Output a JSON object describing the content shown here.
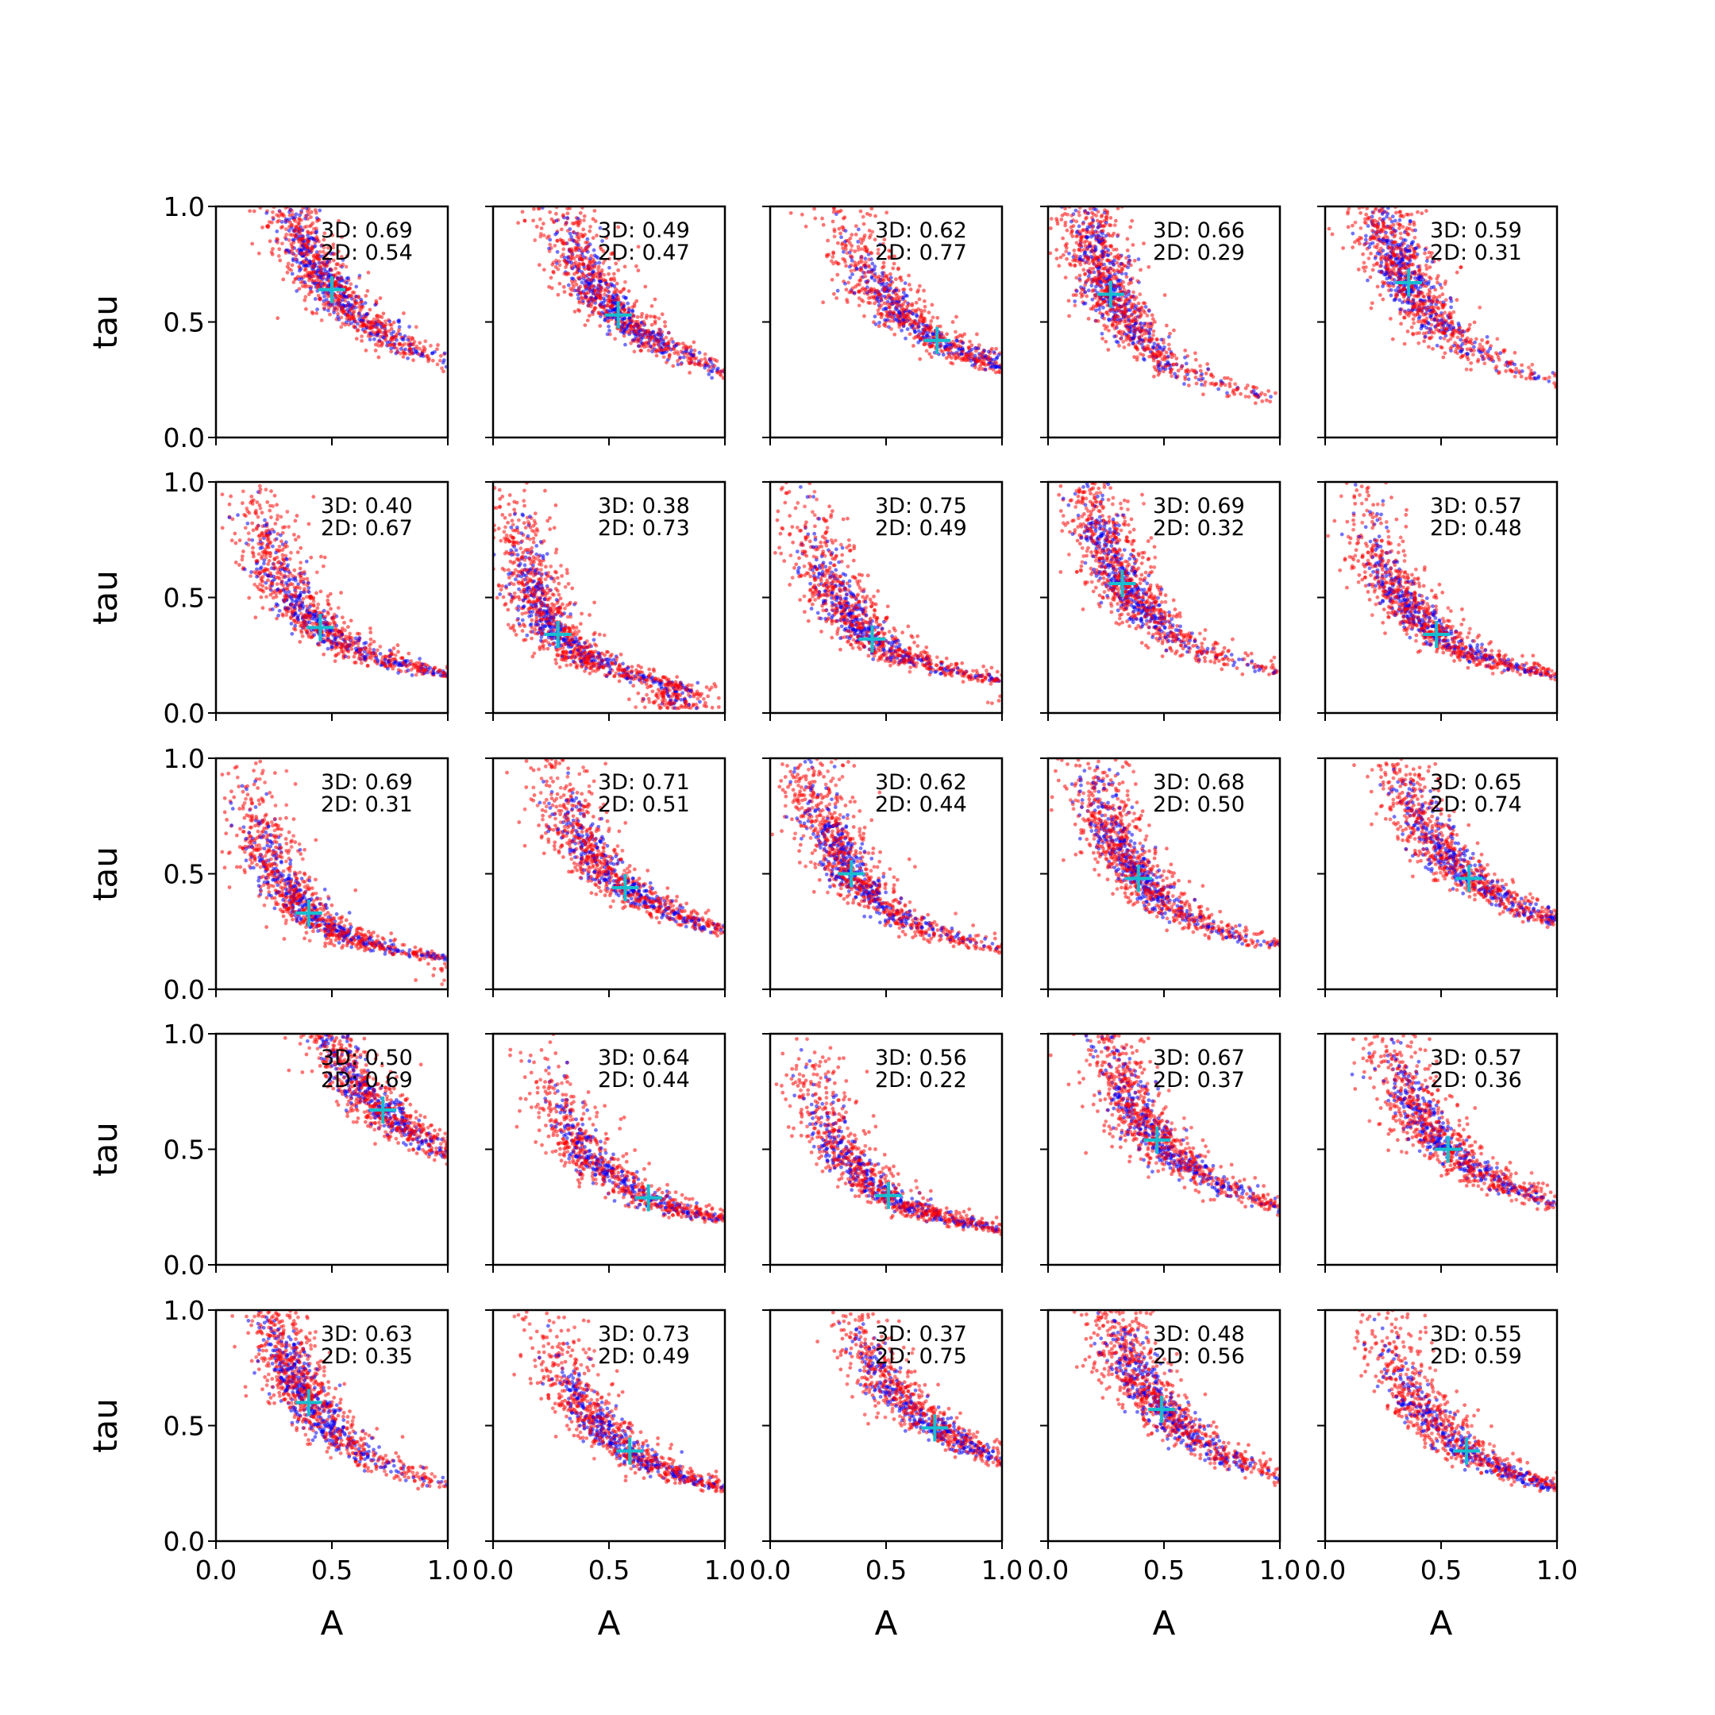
{
  "chart_data": {
    "type": "scatter",
    "layout": "5x5 grid of scatter subplots",
    "xlabel": "A",
    "ylabel": "tau",
    "xlim": [
      0.0,
      1.0
    ],
    "ylim": [
      0.0,
      1.0
    ],
    "xticks": [
      "0.0",
      "0.5",
      "1.0"
    ],
    "yticks": [
      "0.0",
      "0.5",
      "1.0"
    ],
    "grid": false,
    "colors": {
      "series_a": "#ff0000",
      "series_b": "#0000ff",
      "marker": "#17becf"
    },
    "panels": [
      {
        "row": 0,
        "col": 0,
        "label3d": "3D: 0.69",
        "label2d": "2D: 0.54",
        "marker": [
          0.5,
          0.64
        ]
      },
      {
        "row": 0,
        "col": 1,
        "label3d": "3D: 0.49",
        "label2d": "2D: 0.47",
        "marker": [
          0.54,
          0.53
        ]
      },
      {
        "row": 0,
        "col": 2,
        "label3d": "3D: 0.62",
        "label2d": "2D: 0.77",
        "marker": [
          0.72,
          0.42
        ]
      },
      {
        "row": 0,
        "col": 3,
        "label3d": "3D: 0.66",
        "label2d": "2D: 0.29",
        "marker": [
          0.27,
          0.62
        ]
      },
      {
        "row": 0,
        "col": 4,
        "label3d": "3D: 0.59",
        "label2d": "2D: 0.31",
        "marker": [
          0.36,
          0.67
        ]
      },
      {
        "row": 1,
        "col": 0,
        "label3d": "3D: 0.40",
        "label2d": "2D: 0.67",
        "marker": [
          0.45,
          0.37
        ]
      },
      {
        "row": 1,
        "col": 1,
        "label3d": "3D: 0.38",
        "label2d": "2D: 0.73",
        "marker": [
          0.28,
          0.34
        ]
      },
      {
        "row": 1,
        "col": 2,
        "label3d": "3D: 0.75",
        "label2d": "2D: 0.49",
        "marker": [
          0.44,
          0.32
        ]
      },
      {
        "row": 1,
        "col": 3,
        "label3d": "3D: 0.69",
        "label2d": "2D: 0.32",
        "marker": [
          0.32,
          0.56
        ]
      },
      {
        "row": 1,
        "col": 4,
        "label3d": "3D: 0.57",
        "label2d": "2D: 0.48",
        "marker": [
          0.48,
          0.34
        ]
      },
      {
        "row": 2,
        "col": 0,
        "label3d": "3D: 0.69",
        "label2d": "2D: 0.31",
        "marker": [
          0.4,
          0.33
        ]
      },
      {
        "row": 2,
        "col": 1,
        "label3d": "3D: 0.71",
        "label2d": "2D: 0.51",
        "marker": [
          0.57,
          0.44
        ]
      },
      {
        "row": 2,
        "col": 2,
        "label3d": "3D: 0.62",
        "label2d": "2D: 0.44",
        "marker": [
          0.35,
          0.5
        ]
      },
      {
        "row": 2,
        "col": 3,
        "label3d": "3D: 0.68",
        "label2d": "2D: 0.50",
        "marker": [
          0.39,
          0.48
        ]
      },
      {
        "row": 2,
        "col": 4,
        "label3d": "3D: 0.65",
        "label2d": "2D: 0.74",
        "marker": [
          0.62,
          0.48
        ]
      },
      {
        "row": 3,
        "col": 0,
        "label3d": "3D: 0.50",
        "label2d": "2D: 0.69",
        "marker": [
          0.72,
          0.67
        ]
      },
      {
        "row": 3,
        "col": 1,
        "label3d": "3D: 0.64",
        "label2d": "2D: 0.44",
        "marker": [
          0.67,
          0.29
        ]
      },
      {
        "row": 3,
        "col": 2,
        "label3d": "3D: 0.56",
        "label2d": "2D: 0.22",
        "marker": [
          0.51,
          0.3
        ]
      },
      {
        "row": 3,
        "col": 3,
        "label3d": "3D: 0.67",
        "label2d": "2D: 0.37",
        "marker": [
          0.47,
          0.54
        ]
      },
      {
        "row": 3,
        "col": 4,
        "label3d": "3D: 0.57",
        "label2d": "2D: 0.36",
        "marker": [
          0.53,
          0.5
        ]
      },
      {
        "row": 4,
        "col": 0,
        "label3d": "3D: 0.63",
        "label2d": "2D: 0.35",
        "marker": [
          0.4,
          0.6
        ]
      },
      {
        "row": 4,
        "col": 1,
        "label3d": "3D: 0.73",
        "label2d": "2D: 0.49",
        "marker": [
          0.59,
          0.39
        ]
      },
      {
        "row": 4,
        "col": 2,
        "label3d": "3D: 0.37",
        "label2d": "2D: 0.75",
        "marker": [
          0.71,
          0.49
        ]
      },
      {
        "row": 4,
        "col": 3,
        "label3d": "3D: 0.48",
        "label2d": "2D: 0.56",
        "marker": [
          0.49,
          0.57
        ]
      },
      {
        "row": 4,
        "col": 4,
        "label3d": "3D: 0.55",
        "label2d": "2D: 0.59",
        "marker": [
          0.61,
          0.39
        ]
      }
    ]
  }
}
